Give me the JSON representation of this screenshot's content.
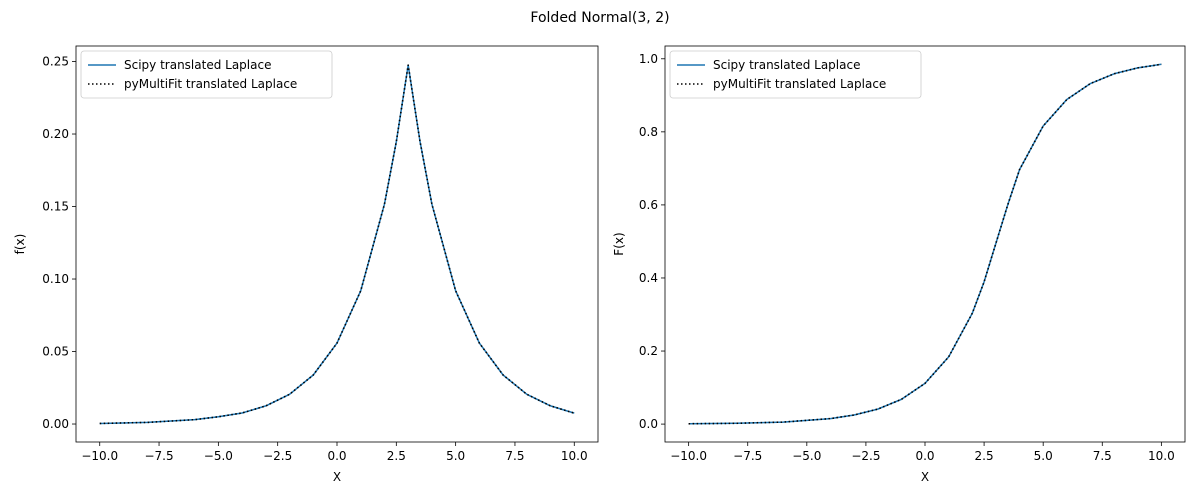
{
  "figure": {
    "title": "Folded Normal(3, 2)"
  },
  "chart_data": [
    {
      "type": "line",
      "xlabel": "X",
      "ylabel": "f(x)",
      "xlim": [
        -11.0,
        11.0
      ],
      "ylim": [
        -0.0124,
        0.2607
      ],
      "xticks": [
        -10.0,
        -7.5,
        -5.0,
        -2.5,
        0.0,
        2.5,
        5.0,
        7.5,
        10.0
      ],
      "xtick_labels": [
        "−10.0",
        "−7.5",
        "−5.0",
        "−2.5",
        "0.0",
        "2.5",
        "5.0",
        "7.5",
        "10.0"
      ],
      "yticks": [
        0.0,
        0.05,
        0.1,
        0.15,
        0.2,
        0.25
      ],
      "ytick_labels": [
        "0.00",
        "0.05",
        "0.10",
        "0.15",
        "0.20",
        "0.25"
      ],
      "legend": "top-left",
      "grid": false,
      "series": [
        {
          "name": "Scipy translated Laplace",
          "style": "solid",
          "color": "#1f77b4",
          "x": [
            -10,
            -8,
            -6,
            -5,
            -4,
            -3,
            -2,
            -1,
            0,
            1,
            2,
            2.5,
            3,
            3.5,
            4,
            5,
            6,
            7,
            8,
            9,
            10
          ],
          "y": [
            0.0004,
            0.0011,
            0.003,
            0.005,
            0.0076,
            0.0125,
            0.0205,
            0.0338,
            0.0558,
            0.0919,
            0.1516,
            0.1947,
            0.2475,
            0.1947,
            0.1516,
            0.0919,
            0.0558,
            0.0338,
            0.0205,
            0.0125,
            0.0075
          ]
        },
        {
          "name": "pyMultiFit translated Laplace",
          "style": "dotted",
          "color": "#000000",
          "x": [
            -10,
            -8,
            -6,
            -5,
            -4,
            -3,
            -2,
            -1,
            0,
            1,
            2,
            2.5,
            3,
            3.5,
            4,
            5,
            6,
            7,
            8,
            9,
            10
          ],
          "y": [
            0.0004,
            0.0011,
            0.003,
            0.005,
            0.0076,
            0.0125,
            0.0205,
            0.0338,
            0.0558,
            0.0919,
            0.1516,
            0.1947,
            0.2475,
            0.1947,
            0.1516,
            0.0919,
            0.0558,
            0.0338,
            0.0205,
            0.0125,
            0.0075
          ]
        }
      ]
    },
    {
      "type": "line",
      "xlabel": "X",
      "ylabel": "F(x)",
      "xlim": [
        -11.0,
        11.0
      ],
      "ylim": [
        -0.049,
        1.035
      ],
      "xticks": [
        -10.0,
        -7.5,
        -5.0,
        -2.5,
        0.0,
        2.5,
        5.0,
        7.5,
        10.0
      ],
      "xtick_labels": [
        "−10.0",
        "−7.5",
        "−5.0",
        "−2.5",
        "0.0",
        "2.5",
        "5.0",
        "7.5",
        "10.0"
      ],
      "yticks": [
        0.0,
        0.2,
        0.4,
        0.6,
        0.8,
        1.0
      ],
      "ytick_labels": [
        "0.0",
        "0.2",
        "0.4",
        "0.6",
        "0.8",
        "1.0"
      ],
      "legend": "top-left",
      "grid": false,
      "series": [
        {
          "name": "Scipy translated Laplace",
          "style": "solid",
          "color": "#1f77b4",
          "x": [
            -10,
            -8,
            -6,
            -4,
            -3,
            -2,
            -1,
            0,
            1,
            2,
            2.5,
            3,
            3.5,
            4,
            5,
            6,
            7,
            8,
            9,
            10
          ],
          "y": [
            0.0009,
            0.0022,
            0.0055,
            0.0151,
            0.0249,
            0.041,
            0.0677,
            0.1116,
            0.1839,
            0.3033,
            0.3894,
            0.495,
            0.6,
            0.6965,
            0.8161,
            0.8884,
            0.9323,
            0.959,
            0.9751,
            0.9849
          ]
        },
        {
          "name": "pyMultiFit translated Laplace",
          "style": "dotted",
          "color": "#000000",
          "x": [
            -10,
            -8,
            -6,
            -4,
            -3,
            -2,
            -1,
            0,
            1,
            2,
            2.5,
            3,
            3.5,
            4,
            5,
            6,
            7,
            8,
            9,
            10
          ],
          "y": [
            0.0009,
            0.0022,
            0.0055,
            0.0151,
            0.0249,
            0.041,
            0.0677,
            0.1116,
            0.1839,
            0.3033,
            0.3894,
            0.495,
            0.6,
            0.6965,
            0.8161,
            0.8884,
            0.9323,
            0.959,
            0.9751,
            0.9849
          ]
        }
      ]
    }
  ]
}
